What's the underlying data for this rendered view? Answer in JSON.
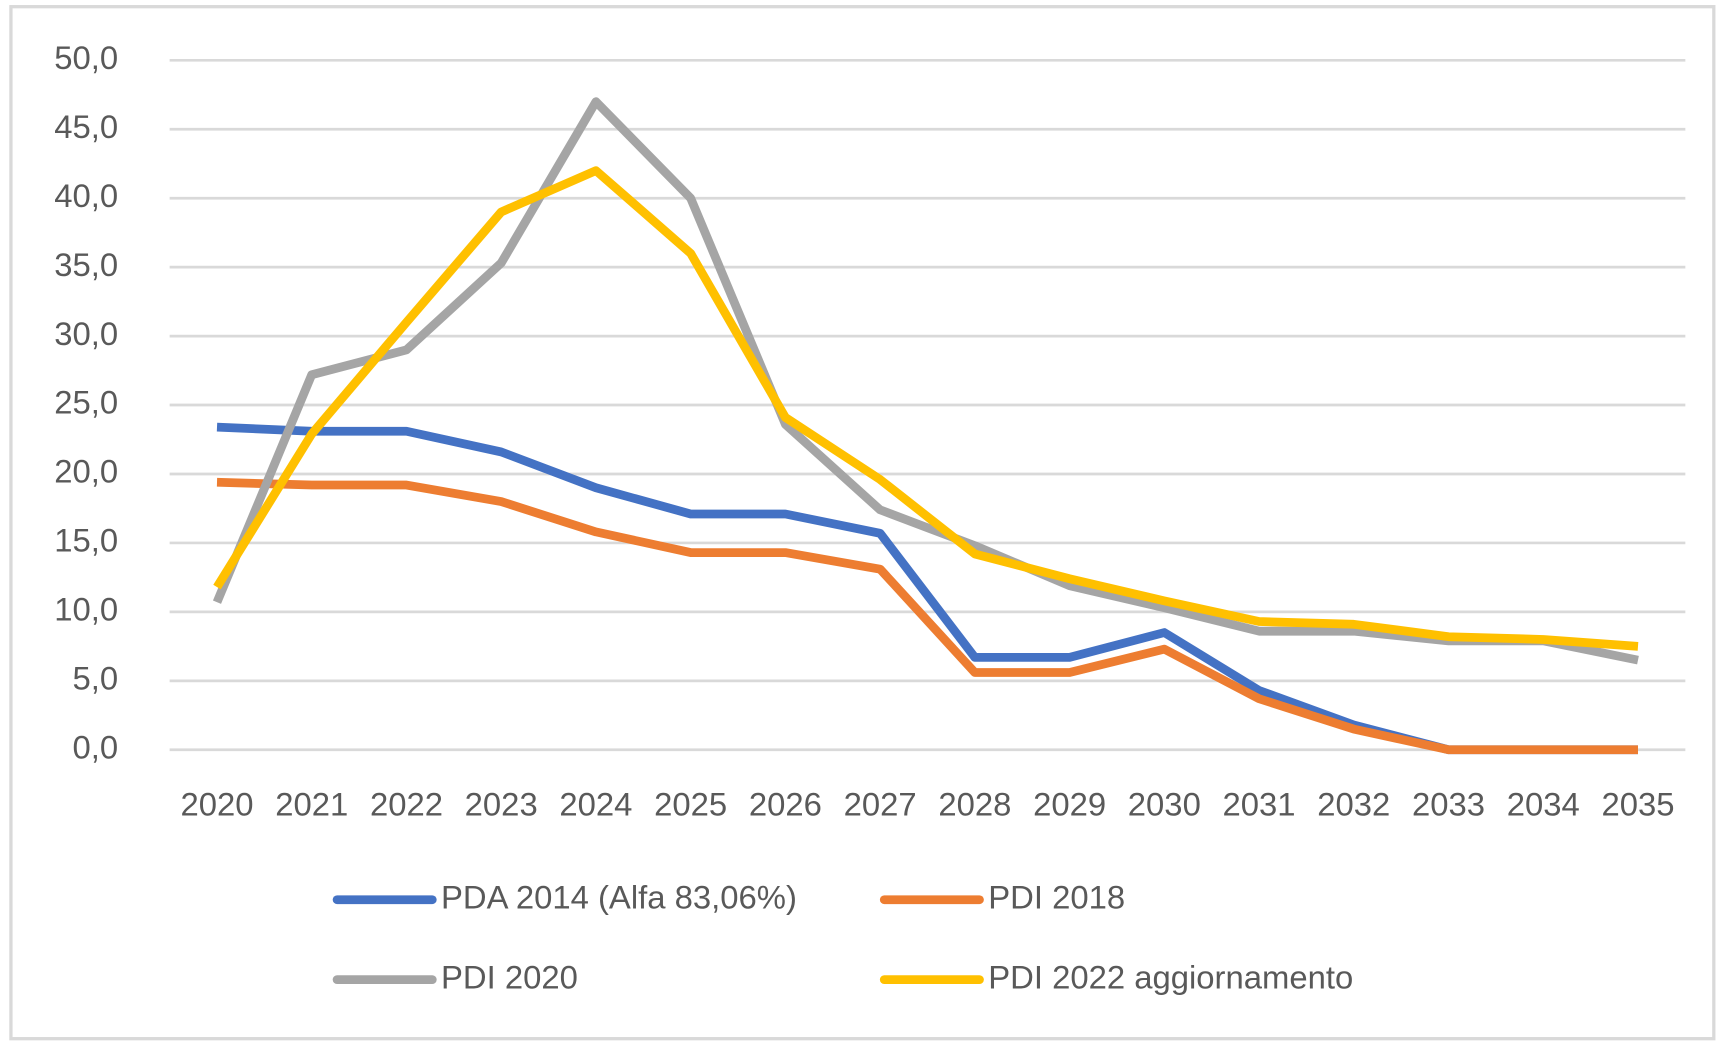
{
  "chart_data": {
    "type": "line",
    "categories": [
      "2020",
      "2021",
      "2022",
      "2023",
      "2024",
      "2025",
      "2026",
      "2027",
      "2028",
      "2029",
      "2030",
      "2031",
      "2032",
      "2033",
      "2034",
      "2035"
    ],
    "series": [
      {
        "name": "PDA 2014 (Alfa 83,06%)",
        "color": "#4472c4",
        "values": [
          23.4,
          23.1,
          23.1,
          21.6,
          19.0,
          17.1,
          17.1,
          15.7,
          6.7,
          6.7,
          8.5,
          4.3,
          1.8,
          0,
          0,
          0
        ]
      },
      {
        "name": "PDI 2018",
        "color": "#ed7d31",
        "values": [
          19.4,
          19.2,
          19.2,
          18.0,
          15.8,
          14.3,
          14.3,
          13.1,
          5.6,
          5.6,
          7.3,
          3.7,
          1.5,
          0,
          0,
          0
        ]
      },
      {
        "name": "PDI 2020",
        "color": "#a5a5a5",
        "values": [
          10.7,
          27.2,
          29.0,
          35.3,
          47.0,
          40.0,
          23.6,
          17.4,
          14.8,
          11.9,
          10.3,
          8.6,
          8.6,
          7.9,
          7.9,
          6.5
        ]
      },
      {
        "name": "PDI 2022 aggiornamento",
        "color": "#ffc000",
        "values": [
          11.8,
          22.9,
          31.0,
          39.0,
          42.0,
          36.0,
          24.1,
          19.6,
          14.2,
          12.4,
          10.8,
          9.3,
          9.1,
          8.2,
          8.0,
          7.5
        ]
      }
    ],
    "ylim": [
      0,
      50
    ],
    "yticks": [
      {
        "value": 0,
        "label": "0,0"
      },
      {
        "value": 5,
        "label": "5,0"
      },
      {
        "value": 10,
        "label": "10,0"
      },
      {
        "value": 15,
        "label": "15,0"
      },
      {
        "value": 20,
        "label": "20,0"
      },
      {
        "value": 25,
        "label": "25,0"
      },
      {
        "value": 30,
        "label": "30,0"
      },
      {
        "value": 35,
        "label": "35,0"
      },
      {
        "value": 40,
        "label": "40,0"
      },
      {
        "value": 45,
        "label": "45,0"
      },
      {
        "value": 50,
        "label": "50,0"
      }
    ],
    "grid": true,
    "legend": "bottom"
  }
}
